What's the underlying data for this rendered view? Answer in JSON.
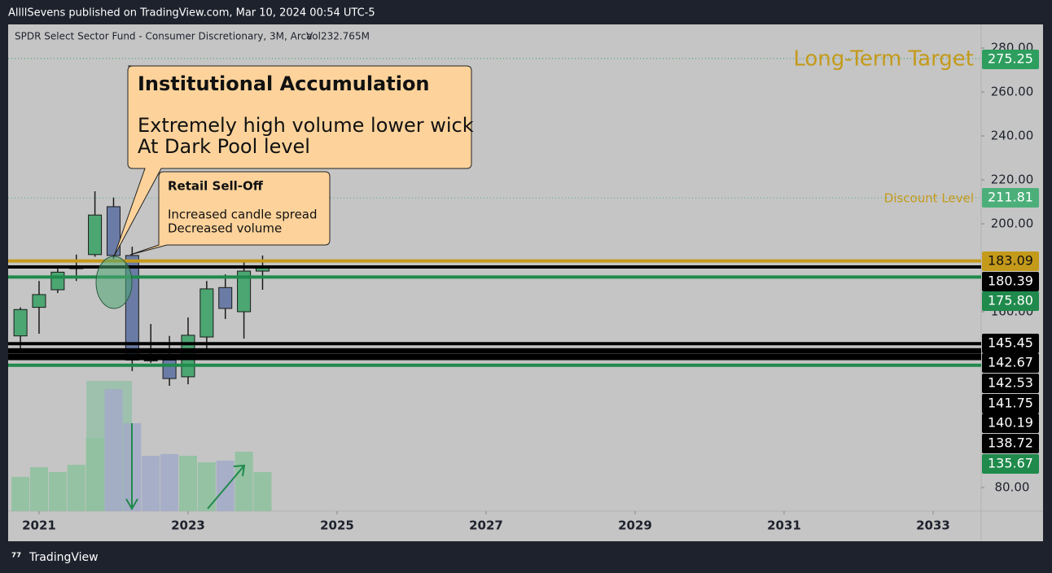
{
  "header": {
    "publisher": "AllllSevens published on TradingView.com, Mar 10, 2024 00:54 UTC-5"
  },
  "footer": {
    "brand": "TradingView"
  },
  "chart_data": {
    "type": "candlestick",
    "title": "SPDR Select Sector Fund - Consumer Discretionary, 3M, Arca",
    "volume_label": "Vol232.765M",
    "x": [
      2020.75,
      2021,
      2021.25,
      2021.5,
      2021.75,
      2022,
      2022.25,
      2022.5,
      2022.75,
      2023,
      2023.25,
      2023.5,
      2023.75,
      2024
    ],
    "open": [
      149,
      162,
      170,
      179.6,
      186,
      207.8,
      185.6,
      138,
      138,
      130.4,
      148.5,
      171,
      160,
      178.5
    ],
    "high": [
      162,
      174,
      179.6,
      186,
      214.8,
      212,
      189.6,
      154.4,
      149,
      157.4,
      174,
      177,
      182.6,
      185.6
    ],
    "low": [
      143,
      150,
      168.5,
      174,
      185,
      184,
      133,
      136.7,
      126.3,
      127,
      143.3,
      156.7,
      147.8,
      170
    ],
    "close": [
      161,
      167.8,
      178,
      180.4,
      204,
      185.6,
      138,
      137.8,
      129.6,
      149.3,
      170.4,
      161.5,
      178.5,
      180
    ],
    "volume": [
      204,
      262,
      233,
      276,
      436,
      727,
      524,
      330,
      340,
      330,
      291,
      301,
      354,
      232.765
    ],
    "volume_ylim": [
      0,
      2900
    ],
    "up_color": "#4ca672",
    "down_color": "#6a7ca6",
    "volume_up_color": "#8fc19f",
    "volume_down_color": "#a3abc6",
    "xlim": [
      2020.585,
      2033.645
    ],
    "xticks": [
      2021,
      2023,
      2025,
      2027,
      2029,
      2031,
      2033
    ],
    "ylim": [
      69.26,
      290.74
    ],
    "yticks": [
      {
        "value": 280,
        "label": "280.00"
      },
      {
        "value": 260,
        "label": "260.00"
      },
      {
        "value": 240,
        "label": "240.00"
      },
      {
        "value": 220,
        "label": "220.00"
      },
      {
        "value": 200,
        "label": "200.00"
      },
      {
        "value": 160,
        "label": "160.00"
      },
      {
        "value": 80,
        "label": "80.00"
      }
    ],
    "grid": false,
    "levels": [
      {
        "value": 275.25,
        "color": "#2e9e5f",
        "style": "dotted",
        "text": "Long-Term Target",
        "text_color": "#c49a1a"
      },
      {
        "value": 211.81,
        "color": "#4caf7a",
        "style": "dotted",
        "text": "Discount Level",
        "text_color": "#c49a1a"
      },
      {
        "value": 183.09,
        "color": "#c49a1a",
        "style": "solid"
      },
      {
        "value": 180.39,
        "color": "#000000",
        "style": "solid"
      },
      {
        "value": 175.8,
        "label": "175.80",
        "color": "#1f8a4c",
        "style": "solid"
      },
      {
        "value": 145.45,
        "color": "#000000",
        "style": "solid"
      },
      {
        "value": 142.67,
        "color": "#000000",
        "style": "solid"
      },
      {
        "value": 142.53,
        "color": "#000000",
        "style": "solid"
      },
      {
        "value": 141.75,
        "color": "#000000",
        "style": "solid"
      },
      {
        "value": 140.19,
        "color": "#000000",
        "style": "solid"
      },
      {
        "value": 138.72,
        "color": "#000000",
        "style": "solid"
      },
      {
        "value": 135.67,
        "color": "#1f8a4c",
        "style": "solid"
      }
    ],
    "annotations": [
      {
        "title": "Institutional Accumulation",
        "lines": [
          "Extremely high volume lower wick",
          "At Dark Pool level"
        ]
      },
      {
        "title": "Retail Sell-Off",
        "lines": [
          "Increased candle spread",
          "Decreased volume"
        ]
      }
    ]
  }
}
